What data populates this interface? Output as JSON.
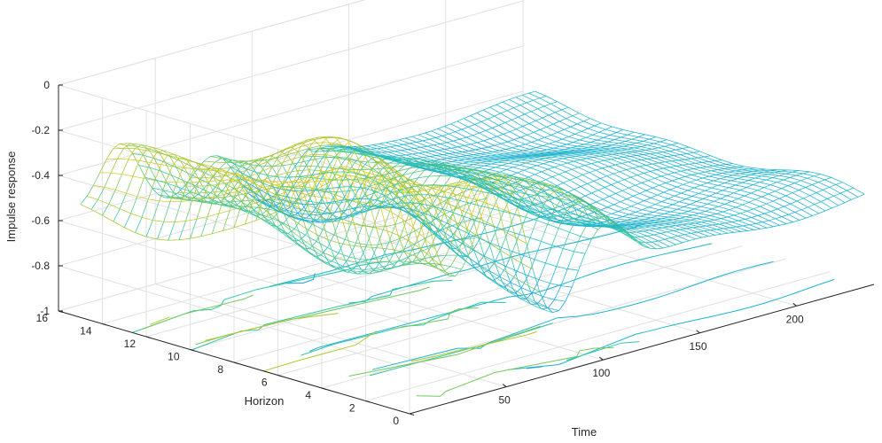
{
  "chart_data": {
    "type": "surface-mesh-3d",
    "title": "",
    "xlabel": "Time",
    "ylabel": "Horizon",
    "zlabel": "Impulse response",
    "xlim": [
      0,
      240
    ],
    "ylim": [
      0,
      16
    ],
    "zlim": [
      -1,
      0
    ],
    "xticks": [
      "50",
      "100",
      "150",
      "200"
    ],
    "yticks": [
      "0",
      "2",
      "4",
      "6",
      "8",
      "10",
      "12",
      "14",
      "16"
    ],
    "zticks": [
      "0",
      "-0.2",
      "-0.4",
      "-0.6",
      "-0.8",
      "-1"
    ],
    "grid": true,
    "colormap": "parula",
    "colormap_stops": [
      "#3e26a8",
      "#2f64e8",
      "#12a5e8",
      "#30c7a6",
      "#a4c52d",
      "#f2cc2c",
      "#f9fb15"
    ],
    "contour_projection": true,
    "surface": {
      "time_range": [
        0,
        235
      ],
      "horizon_range": [
        0,
        15
      ],
      "peaks_near_zero_at_time": [
        0,
        45,
        88
      ],
      "trough_min": -0.95,
      "trough_time_range": [
        60,
        110
      ],
      "late_level": -0.6
    }
  }
}
